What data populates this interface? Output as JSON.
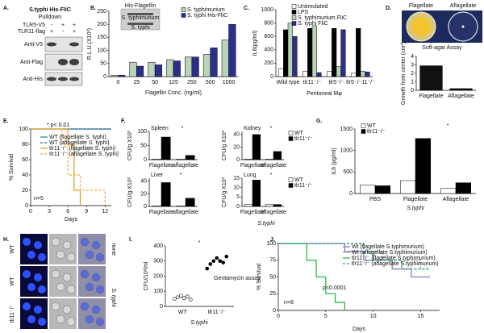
{
  "panel_labels": [
    "A.",
    "B.",
    "C.",
    "D.",
    "E.",
    "F.",
    "G.",
    "H.",
    "I.",
    "J."
  ],
  "blot": {
    "title": [
      "S.typhi His-FliC",
      "Pulldown"
    ],
    "rows": [
      {
        "label": "TLR5-V5",
        "signs": [
          "-",
          "+",
          "+"
        ]
      },
      {
        "label": "TLR11-flag",
        "signs": [
          "+",
          "-",
          "+"
        ]
      }
    ],
    "antibodies": [
      "Anti-V5",
      "Anti-Flag",
      "Anti-His"
    ]
  },
  "soft_agar": {
    "plates": [
      "Flagellate",
      "Aflagellate"
    ],
    "caption": "Soft-agar Assay"
  },
  "panel_F": {
    "group_label": "S.typhi"
  },
  "microscopy": {
    "rows": [
      "WT",
      "WT",
      "tlr11⁻/⁻"
    ],
    "conditions": [
      "none",
      "S. typhi"
    ]
  },
  "chart_data": [
    {
      "type": "bar",
      "ylabel": "R.L.U.(X10³)",
      "xlabel": "Flagellin Conc. (ng/ml)",
      "categories": [
        "0",
        "25",
        "50",
        "125",
        "250",
        "500",
        "1000"
      ],
      "series": [
        {
          "name": "S. typhimurium",
          "color": "#b9d3b8",
          "values": [
            5,
            55,
            55,
            65,
            75,
            85,
            140
          ]
        },
        {
          "name": "S. typhi His-FliC",
          "color": "#2b2f8c",
          "values": [
            5,
            40,
            45,
            60,
            75,
            110,
            200
          ]
        }
      ],
      "ylim": [
        0,
        250
      ],
      "yticks": [
        0,
        50,
        100,
        150,
        200,
        250
      ],
      "inset": {
        "title": "His-Flagellin",
        "labels": [
          "S. typhimurium",
          "S. typhi"
        ]
      }
    },
    {
      "type": "bar",
      "ylabel": "IL6(pg/ml)",
      "xlabel": "Peritoneal Mφ",
      "categories": [
        "Wild type",
        "tlr11⁻/⁻",
        "tlr5⁻/⁻",
        "tlr5⁻/⁻11⁻/⁻"
      ],
      "series": [
        {
          "name": "Untimulated",
          "color": "#ffffff",
          "values": [
            120,
            80,
            80,
            50
          ]
        },
        {
          "name": "LPS",
          "color": "#000000",
          "values": [
            700,
            720,
            720,
            720
          ]
        },
        {
          "name": "S. typhimurium FliC",
          "color": "#b9d3b8",
          "values": [
            800,
            760,
            150,
            80
          ]
        },
        {
          "name": "S. typhi FliC",
          "color": "#2b2f8c",
          "values": [
            600,
            60,
            700,
            70
          ]
        }
      ],
      "ylim": [
        0,
        1000
      ],
      "yticks": [
        0,
        200,
        400,
        600,
        800,
        1000
      ]
    },
    {
      "type": "bar",
      "ylabel": "Growth from center (cm²)",
      "categories": [
        "Flagellate",
        "Aflagellate"
      ],
      "values": [
        2.9,
        0.2
      ],
      "color": "#111111",
      "ylim": [
        0,
        4
      ],
      "yticks": [
        0,
        1,
        2,
        3,
        4
      ]
    },
    {
      "type": "line",
      "xlabel": "Days",
      "ylabel": "% Survival",
      "xlim": [
        0,
        13
      ],
      "xticks": [
        0,
        3,
        6,
        9,
        12
      ],
      "ylim": [
        0,
        100
      ],
      "yticks": [
        0,
        20,
        40,
        60,
        80,
        100
      ],
      "annotations": [
        "* p< 0.01",
        "n=5"
      ],
      "series": [
        {
          "name": "WT (flagellate S. typhi)",
          "color": "#2a8a8a",
          "dash": false,
          "x": [
            0,
            13
          ],
          "values": [
            100,
            100
          ]
        },
        {
          "name": "WT (aflagellate S. typhi)",
          "color": "#3a5fb0",
          "dash": true,
          "x": [
            0,
            13
          ],
          "values": [
            100,
            100
          ]
        },
        {
          "name": "tlr11⁻/⁻ (flagellate S. typhi)",
          "color": "#e8a020",
          "dash": false,
          "x": [
            0,
            6,
            6,
            7,
            7,
            8,
            8
          ],
          "values": [
            100,
            100,
            80,
            80,
            20,
            20,
            0
          ]
        },
        {
          "name": "tlr11⁻/⁻ (aflagellate S. typhi)",
          "color": "#f0b040",
          "dash": true,
          "x": [
            0,
            5,
            5,
            6,
            6,
            8,
            8,
            12,
            12
          ],
          "values": [
            100,
            100,
            80,
            80,
            40,
            40,
            20,
            20,
            0
          ]
        }
      ]
    },
    {
      "type": "bar",
      "title": "Spleen",
      "ylabel": "CFU/g X10³",
      "categories": [
        "Flagellate",
        "aflagellate"
      ],
      "series": [
        {
          "color": "#ffffff",
          "values": [
            2,
            2
          ]
        },
        {
          "color": "#000000",
          "values": [
            80,
            15
          ]
        }
      ],
      "ylim": [
        0,
        100
      ],
      "yticks": [
        0,
        50,
        100
      ],
      "annotations": [
        "*"
      ]
    },
    {
      "type": "bar",
      "title": "Kidney",
      "ylabel": "CFU/g X10³",
      "categories": [
        "Flagellate",
        "aflagellate"
      ],
      "series": [
        {
          "name": "WT",
          "color": "#ffffff",
          "values": [
            1,
            1
          ]
        },
        {
          "name": "tlr11⁻/⁻",
          "color": "#000000",
          "values": [
            40,
            13
          ]
        }
      ],
      "ylim": [
        0,
        45
      ],
      "yticks": [
        0,
        20,
        40
      ],
      "annotations": [
        "*"
      ]
    },
    {
      "type": "bar",
      "title": "Liver",
      "ylabel": "CFU/g X10³",
      "categories": [
        "Flagellate",
        "aflagellate"
      ],
      "series": [
        {
          "color": "#ffffff",
          "values": [
            1,
            1
          ]
        },
        {
          "color": "#000000",
          "values": [
            38,
            13
          ]
        }
      ],
      "ylim": [
        0,
        45
      ],
      "yticks": [
        0,
        20,
        40
      ],
      "annotations": [
        "*"
      ]
    },
    {
      "type": "bar",
      "title": "Lung",
      "ylabel": "CFU/g X10³",
      "categories": [
        "Flagellate",
        "aflagellate"
      ],
      "series": [
        {
          "name": "WT",
          "color": "#ffffff",
          "values": [
            1,
            1
          ]
        },
        {
          "name": "tlr11⁻/⁻",
          "color": "#000000",
          "values": [
            14,
            1
          ]
        }
      ],
      "ylim": [
        0,
        15
      ],
      "yticks": [
        0,
        5,
        10,
        15
      ],
      "annotations": [
        "*"
      ]
    },
    {
      "type": "bar",
      "ylabel": "IL6 (pg/ml)",
      "categories": [
        "PBS",
        "Flagellate",
        "Aflagellate"
      ],
      "series": [
        {
          "name": "WT",
          "color": "#ffffff",
          "values": [
            200,
            300,
            120
          ]
        },
        {
          "name": "tlr11⁻/⁻",
          "color": "#000000",
          "values": [
            180,
            1280,
            250
          ]
        }
      ],
      "ylim": [
        0,
        1500
      ],
      "yticks": [
        0,
        500,
        1000,
        1500
      ],
      "annotations": [
        "*"
      ],
      "group_label": "S.typhi"
    },
    {
      "type": "dot",
      "ylabel": "CFU/10²/ml",
      "categories": [
        "WT",
        "tlr11⁻/⁻"
      ],
      "colors": [
        "#ffffff",
        "#000000"
      ],
      "values": [
        [
          50,
          60,
          70,
          55,
          65,
          45
        ],
        [
          250,
          280,
          300,
          320,
          300,
          290,
          330
        ]
      ],
      "ylim": [
        0,
        400
      ],
      "yticks": [
        0,
        100,
        200,
        300,
        400
      ],
      "annotations": [
        "*",
        "Gentamycin assay"
      ],
      "group_label": "S.typhi"
    },
    {
      "type": "line",
      "xlabel": "Days",
      "ylabel": "% Survival",
      "xlim": [
        0,
        17
      ],
      "xticks": [
        0,
        5,
        10,
        15
      ],
      "ylim": [
        0,
        100
      ],
      "yticks": [
        0,
        25,
        50,
        75,
        100
      ],
      "annotations": [
        "p<0.0001",
        "n=8"
      ],
      "series": [
        {
          "name": "Wt (flagellate S.typhimurium)",
          "color": "#8a7ab8",
          "dash": false,
          "x": [
            0,
            7,
            7,
            9,
            9,
            12,
            12,
            14,
            14,
            16
          ],
          "values": [
            100,
            100,
            88,
            88,
            75,
            75,
            62,
            62,
            50,
            50
          ]
        },
        {
          "name": "Wt (aflagellate S.typhimurium)",
          "color": "#999999",
          "dash": true,
          "x": [
            0,
            9,
            9,
            11,
            11,
            15,
            15,
            16
          ],
          "values": [
            100,
            100,
            88,
            88,
            75,
            75,
            62,
            62
          ]
        },
        {
          "name": "tlr11⁻/⁻ (flagellate S.typhimurium)",
          "color": "#2db84a",
          "dash": false,
          "x": [
            0,
            3,
            3,
            4,
            4,
            5,
            5,
            6,
            6,
            7,
            7
          ],
          "values": [
            100,
            100,
            75,
            75,
            50,
            50,
            25,
            25,
            12,
            12,
            0
          ]
        },
        {
          "name": "tlr11⁻/⁻ (aflagellate S.typhimurium)",
          "color": "#2aa090",
          "dash": true,
          "x": [
            0,
            9,
            9,
            10,
            10,
            13,
            13,
            16
          ],
          "values": [
            100,
            100,
            88,
            88,
            75,
            75,
            62,
            62
          ]
        }
      ]
    }
  ]
}
